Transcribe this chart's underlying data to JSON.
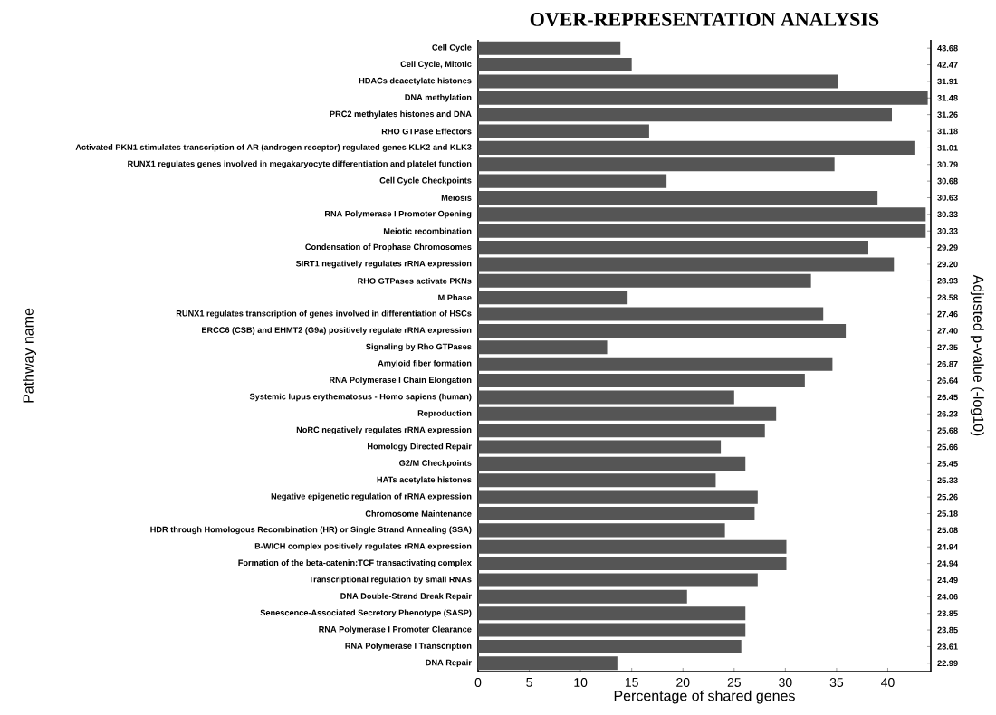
{
  "chart_data": {
    "type": "bar",
    "orientation": "horizontal",
    "title": "OVER-REPRESENTATION ANALYSIS",
    "xlabel": "Percentage of shared genes",
    "ylabel": "Pathway name",
    "y2label": "Adjusted p-value (-log10)",
    "categories": [
      "Cell Cycle",
      "Cell Cycle, Mitotic",
      "HDACs deacetylate histones",
      "DNA methylation",
      "PRC2 methylates histones and DNA",
      "RHO GTPase Effectors",
      "Activated PKN1 stimulates transcription of AR (androgen receptor) regulated genes KLK2 and KLK3",
      "RUNX1 regulates genes involved in megakaryocyte differentiation and platelet function",
      "Cell Cycle Checkpoints",
      "Meiosis",
      "RNA Polymerase I Promoter Opening",
      "Meiotic recombination",
      "Condensation of Prophase Chromosomes",
      "SIRT1 negatively regulates rRNA expression",
      "RHO GTPases activate PKNs",
      "M Phase",
      "RUNX1 regulates transcription of genes involved in differentiation of HSCs",
      "ERCC6 (CSB) and EHMT2 (G9a) positively regulate rRNA expression",
      "Signaling by Rho GTPases",
      "Amyloid fiber formation",
      "RNA Polymerase I Chain Elongation",
      "Systemic lupus erythematosus - Homo sapiens (human)",
      "Reproduction",
      "NoRC negatively regulates rRNA expression",
      "Homology Directed Repair",
      "G2/M Checkpoints",
      "HATs acetylate histones",
      "Negative epigenetic regulation of rRNA expression",
      "Chromosome Maintenance",
      "HDR through Homologous Recombination (HR) or Single Strand Annealing (SSA)",
      "B-WICH complex positively regulates rRNA expression",
      "Formation of the beta-catenin:TCF transactivating complex",
      "Transcriptional regulation by small RNAs",
      "DNA Double-Strand Break Repair",
      "Senescence-Associated Secretory Phenotype (SASP)",
      "RNA Polymerase I Promoter Clearance",
      "RNA Polymerase I Transcription",
      "DNA Repair"
    ],
    "y2_categories": [
      "43.68",
      "42.47",
      "31.91",
      "31.48",
      "31.26",
      "31.18",
      "31.01",
      "30.79",
      "30.68",
      "30.63",
      "30.33",
      "30.33",
      "29.29",
      "29.20",
      "28.93",
      "28.58",
      "27.46",
      "27.40",
      "27.35",
      "26.87",
      "26.64",
      "26.45",
      "26.23",
      "25.68",
      "25.66",
      "25.45",
      "25.33",
      "25.26",
      "25.18",
      "25.08",
      "24.94",
      "24.94",
      "24.49",
      "24.06",
      "23.85",
      "23.85",
      "23.61",
      "22.99"
    ],
    "values": [
      13.9,
      15.0,
      35.1,
      43.9,
      40.4,
      16.7,
      42.6,
      34.8,
      18.4,
      39.0,
      43.7,
      43.7,
      38.1,
      40.6,
      32.5,
      14.6,
      33.7,
      35.9,
      12.6,
      34.6,
      31.9,
      25.0,
      29.1,
      28.0,
      23.7,
      26.1,
      23.2,
      27.3,
      27.0,
      24.1,
      30.1,
      30.1,
      27.3,
      20.4,
      26.1,
      26.1,
      25.7,
      13.6
    ],
    "color": "#555555",
    "xlim": [
      0,
      44.2
    ],
    "xticks": [
      0,
      5,
      10,
      15,
      20,
      25,
      30,
      35,
      40
    ]
  }
}
